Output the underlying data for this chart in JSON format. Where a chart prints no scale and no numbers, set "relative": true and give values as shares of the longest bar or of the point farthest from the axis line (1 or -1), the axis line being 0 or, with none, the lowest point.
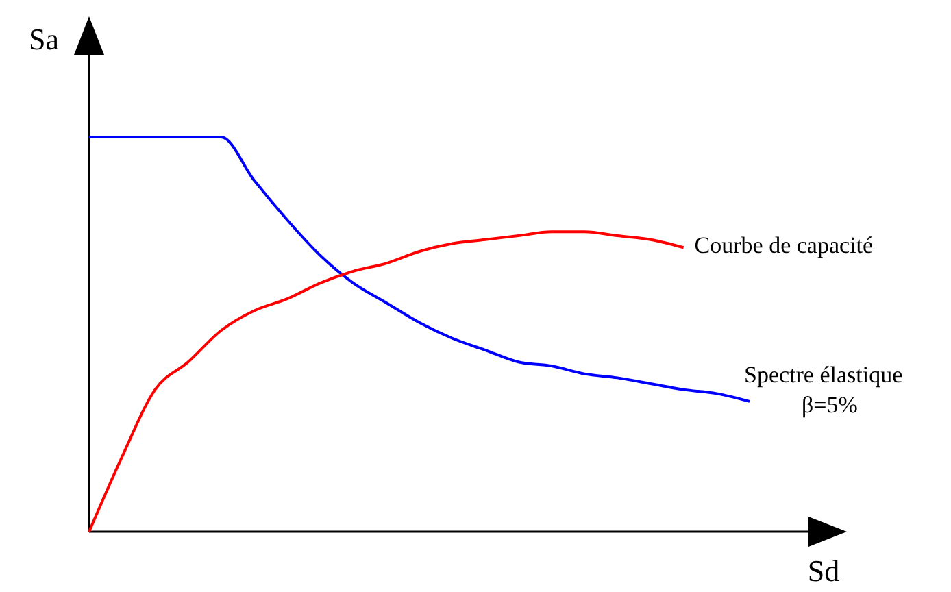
{
  "chart_data": {
    "type": "line",
    "relative": true,
    "xlabel": "Sd",
    "ylabel": "Sa",
    "categories": [
      null,
      null,
      null,
      null,
      null,
      null,
      null,
      null,
      null,
      null,
      null,
      null,
      null,
      null,
      null,
      null,
      null,
      null,
      null,
      null,
      null
    ],
    "series": [
      {
        "name": "Spectre élastique\nβ=5%",
        "color": "#0000ff",
        "values": [
          1,
          1,
          1,
          1,
          1,
          0.89,
          0.79,
          0.7,
          0.63,
          0.58,
          0.53,
          0.49,
          0.46,
          0.43,
          0.42,
          0.4,
          0.39,
          0.375,
          0.36,
          0.35,
          0.33
        ]
      },
      {
        "name": "Courbe de capacité",
        "color": "#ff0000",
        "values": [
          0,
          0.19,
          0.36,
          0.43,
          0.51,
          0.56,
          0.59,
          0.63,
          0.66,
          0.68,
          0.71,
          0.73,
          0.74,
          0.75,
          0.76,
          0.76,
          0.75,
          0.74,
          0.72,
          null,
          null
        ]
      }
    ]
  }
}
